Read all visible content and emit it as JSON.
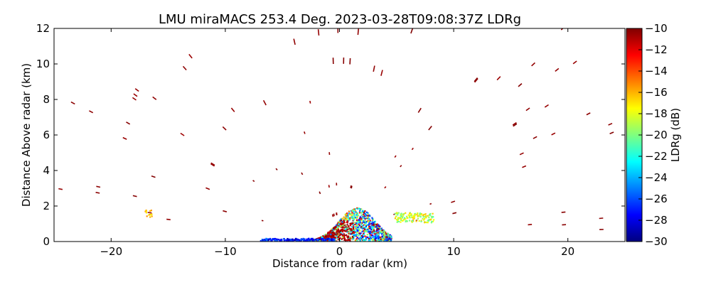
{
  "chart_data": {
    "type": "heatmap",
    "title": "LMU miraMACS 253.4 Deg. 2023-03-28T09:08:37Z  LDRg",
    "xlabel": "Distance from radar (km)",
    "ylabel": "Distance Above radar  (km)",
    "xlim": [
      -25,
      25
    ],
    "ylim": [
      0,
      12
    ],
    "xticks": [
      -20,
      -10,
      0,
      10,
      20
    ],
    "yticks": [
      0,
      2,
      4,
      6,
      8,
      10,
      12
    ],
    "colorbar": {
      "label": "LDRg (dB)",
      "range": [
        -30,
        -10
      ],
      "ticks": [
        -30,
        -28,
        -26,
        -24,
        -22,
        -20,
        -18,
        -16,
        -14,
        -12,
        -10
      ],
      "colormap": "jet",
      "colors": [
        "#00007f",
        "#0000ff",
        "#007fff",
        "#00ffff",
        "#7fff7f",
        "#ffff00",
        "#ff7f00",
        "#ff0000",
        "#7f0000"
      ]
    },
    "grid": false,
    "regions": [
      {
        "description": "dense low-level echo near radar",
        "x_range": [
          -3,
          4
        ],
        "z_range": [
          0,
          2
        ],
        "ldr_range": [
          -28,
          -10
        ]
      },
      {
        "description": "green-yellow low echo",
        "x_range": [
          5,
          8
        ],
        "z_range": [
          1,
          1.6
        ],
        "ldr_range": [
          -20,
          -16
        ]
      },
      {
        "description": "sparse high-LDR streaks (insects/clutter)",
        "x_range": [
          -24,
          22
        ],
        "z_range": [
          0,
          12
        ],
        "ldr_range": [
          -11,
          -10
        ]
      }
    ]
  }
}
